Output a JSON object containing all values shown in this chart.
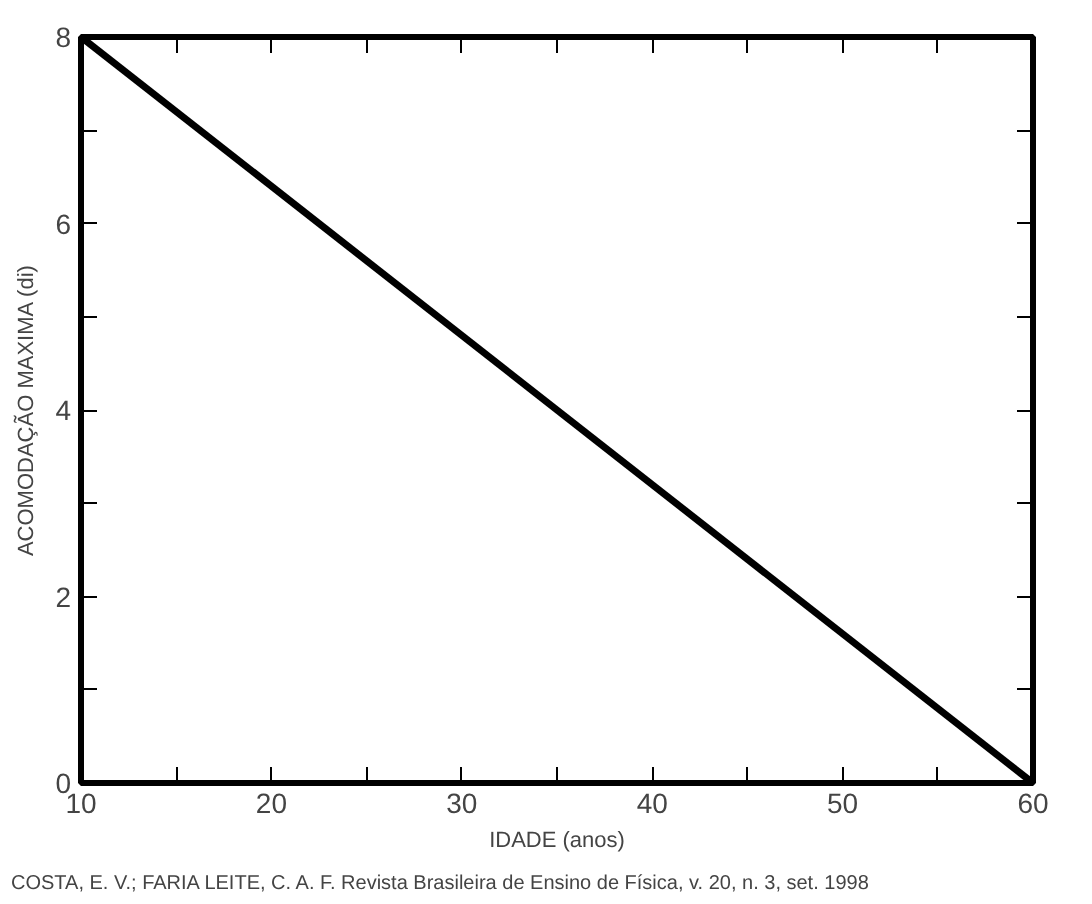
{
  "chart_data": {
    "type": "line",
    "xlabel": "IDADE (anos)",
    "ylabel": "ACOMODAÇÃO MAXIMA (di)",
    "x": [
      10,
      60
    ],
    "series": [
      {
        "color": "#000000",
        "values": [
          8,
          0
        ]
      }
    ],
    "xlim": [
      10,
      60
    ],
    "xticks": [
      10,
      {
        "value": 15,
        "label": null
      },
      20,
      {
        "value": 25,
        "label": null
      },
      30,
      {
        "value": 35,
        "label": null
      },
      40,
      {
        "value": 45,
        "label": null
      },
      50,
      {
        "value": 55,
        "label": null
      },
      60
    ],
    "ylim": [
      0,
      8
    ],
    "yticks": [
      0,
      {
        "value": 1,
        "label": null
      },
      2,
      {
        "value": 3,
        "label": null
      },
      4,
      {
        "value": 5,
        "label": null
      },
      6,
      {
        "value": 7,
        "label": null
      },
      8
    ],
    "grid": false,
    "marker": "none",
    "line_style": "solid",
    "annotations": [
      "COSTA, E. V.; FARIA LEITE, C. A. F. Revista Brasileira de Ensino de Física, v. 20, n. 3, set. 1998"
    ]
  }
}
